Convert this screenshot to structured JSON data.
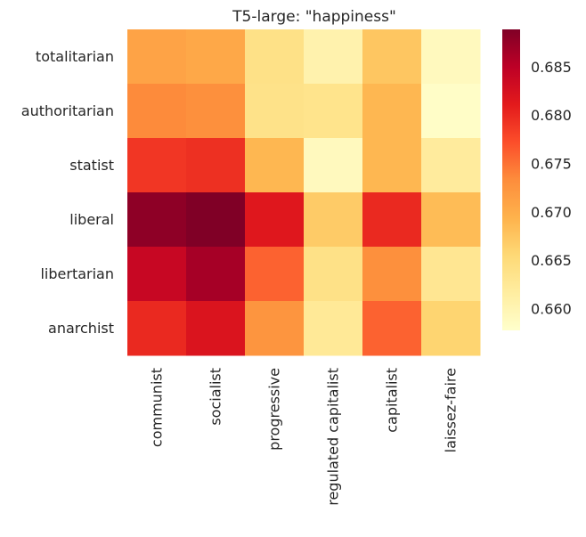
{
  "chart_data": {
    "type": "heatmap",
    "title": "T5-large: \"happiness\"",
    "xlabel": "",
    "ylabel": "",
    "x_categories": [
      "communist",
      "socialist",
      "progressive",
      "regulated capitalist",
      "capitalist",
      "laissez-faire"
    ],
    "y_categories": [
      "totalitarian",
      "authoritarian",
      "statist",
      "liberal",
      "libertarian",
      "anarchist"
    ],
    "values": [
      [
        0.671,
        0.6705,
        0.664,
        0.6605,
        0.6675,
        0.659
      ],
      [
        0.6735,
        0.673,
        0.6638,
        0.6635,
        0.669,
        0.6582
      ],
      [
        0.679,
        0.6795,
        0.669,
        0.659,
        0.669,
        0.662
      ],
      [
        0.688,
        0.689,
        0.6815,
        0.667,
        0.68,
        0.6685
      ],
      [
        0.684,
        0.6865,
        0.676,
        0.664,
        0.673,
        0.663
      ],
      [
        0.68,
        0.682,
        0.6725,
        0.6625,
        0.676,
        0.666
      ]
    ],
    "colorbar": {
      "min": 0.6578,
      "max": 0.6889,
      "ticks": [
        0.66,
        0.665,
        0.67,
        0.675,
        0.68,
        0.685
      ],
      "tick_labels": [
        "0.660",
        "0.665",
        "0.670",
        "0.675",
        "0.680",
        "0.685"
      ],
      "colormap": "YlOrRd",
      "stops": [
        "#ffffcc",
        "#ffeda0",
        "#fed976",
        "#feb24c",
        "#fd8d3c",
        "#fc4e2a",
        "#e31a1c",
        "#bd0026",
        "#800026"
      ]
    },
    "grid": false
  }
}
